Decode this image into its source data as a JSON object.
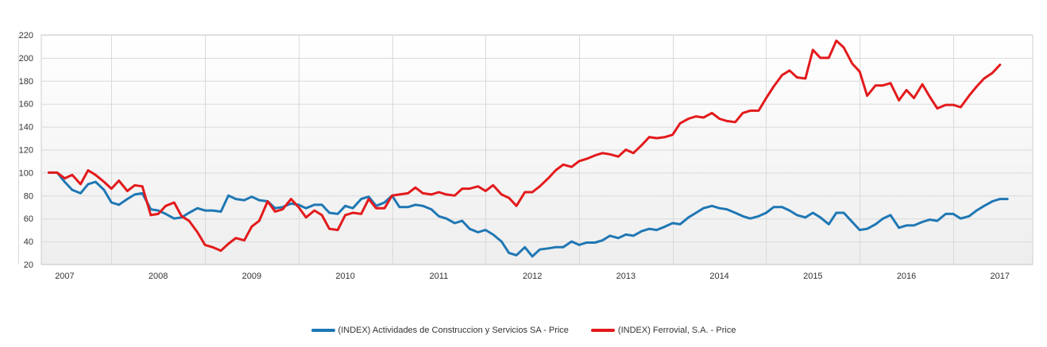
{
  "chart_data": {
    "type": "line",
    "x_years": [
      "2007",
      "2008",
      "2009",
      "2010",
      "2011",
      "2012",
      "2013",
      "2014",
      "2015",
      "2016",
      "2017"
    ],
    "x_range": [
      2006.75,
      2017.35
    ],
    "ylim": [
      20,
      220
    ],
    "yticks": [
      20,
      40,
      60,
      80,
      100,
      120,
      140,
      160,
      180,
      200,
      220
    ],
    "grid": true,
    "legend_placement": "bottom-center",
    "series": [
      {
        "name": "(INDEX) Actividades de Construccion y Servicios SA - Price",
        "color": "#1f77b4",
        "points": [
          [
            2006.83,
            100
          ],
          [
            2006.92,
            100
          ],
          [
            2007.0,
            92
          ],
          [
            2007.08,
            85
          ],
          [
            2007.17,
            82
          ],
          [
            2007.25,
            90
          ],
          [
            2007.33,
            92
          ],
          [
            2007.42,
            85
          ],
          [
            2007.5,
            74
          ],
          [
            2007.58,
            72
          ],
          [
            2007.67,
            77
          ],
          [
            2007.75,
            81
          ],
          [
            2007.83,
            82
          ],
          [
            2007.92,
            68
          ],
          [
            2008.0,
            67
          ],
          [
            2008.08,
            64
          ],
          [
            2008.17,
            60
          ],
          [
            2008.25,
            61
          ],
          [
            2008.33,
            65
          ],
          [
            2008.42,
            69
          ],
          [
            2008.5,
            67
          ],
          [
            2008.58,
            67
          ],
          [
            2008.67,
            66
          ],
          [
            2008.75,
            80
          ],
          [
            2008.83,
            77
          ],
          [
            2008.92,
            76
          ],
          [
            2009.0,
            79
          ],
          [
            2009.08,
            76
          ],
          [
            2009.17,
            75
          ],
          [
            2009.25,
            69
          ],
          [
            2009.33,
            70
          ],
          [
            2009.42,
            73
          ],
          [
            2009.5,
            72
          ],
          [
            2009.58,
            69
          ],
          [
            2009.67,
            72
          ],
          [
            2009.75,
            72
          ],
          [
            2009.83,
            65
          ],
          [
            2009.92,
            64
          ],
          [
            2010.0,
            71
          ],
          [
            2010.08,
            69
          ],
          [
            2010.17,
            77
          ],
          [
            2010.25,
            79
          ],
          [
            2010.33,
            71
          ],
          [
            2010.42,
            74
          ],
          [
            2010.5,
            80
          ],
          [
            2010.58,
            70
          ],
          [
            2010.67,
            70
          ],
          [
            2010.75,
            72
          ],
          [
            2010.83,
            71
          ],
          [
            2010.92,
            68
          ],
          [
            2011.0,
            62
          ],
          [
            2011.08,
            60
          ],
          [
            2011.17,
            56
          ],
          [
            2011.25,
            58
          ],
          [
            2011.33,
            51
          ],
          [
            2011.42,
            48
          ],
          [
            2011.5,
            50
          ],
          [
            2011.58,
            46
          ],
          [
            2011.67,
            40
          ],
          [
            2011.75,
            30
          ],
          [
            2011.83,
            28
          ],
          [
            2011.92,
            35
          ],
          [
            2012.0,
            27
          ],
          [
            2012.08,
            33
          ],
          [
            2012.17,
            34
          ],
          [
            2012.25,
            35
          ],
          [
            2012.33,
            35
          ],
          [
            2012.42,
            40
          ],
          [
            2012.5,
            37
          ],
          [
            2012.58,
            39
          ],
          [
            2012.67,
            39
          ],
          [
            2012.75,
            41
          ],
          [
            2012.83,
            45
          ],
          [
            2012.92,
            43
          ],
          [
            2013.0,
            46
          ],
          [
            2013.08,
            45
          ],
          [
            2013.17,
            49
          ],
          [
            2013.25,
            51
          ],
          [
            2013.33,
            50
          ],
          [
            2013.42,
            53
          ],
          [
            2013.5,
            56
          ],
          [
            2013.58,
            55
          ],
          [
            2013.67,
            61
          ],
          [
            2013.75,
            65
          ],
          [
            2013.83,
            69
          ],
          [
            2013.92,
            71
          ],
          [
            2014.0,
            69
          ],
          [
            2014.08,
            68
          ],
          [
            2014.17,
            65
          ],
          [
            2014.25,
            62
          ],
          [
            2014.33,
            60
          ],
          [
            2014.42,
            62
          ],
          [
            2014.5,
            65
          ],
          [
            2014.58,
            70
          ],
          [
            2014.67,
            70
          ],
          [
            2014.75,
            67
          ],
          [
            2014.83,
            63
          ],
          [
            2014.92,
            61
          ],
          [
            2015.0,
            65
          ],
          [
            2015.08,
            61
          ],
          [
            2015.17,
            55
          ],
          [
            2015.25,
            65
          ],
          [
            2015.33,
            65
          ],
          [
            2015.42,
            57
          ],
          [
            2015.5,
            50
          ],
          [
            2015.58,
            51
          ],
          [
            2015.67,
            55
          ],
          [
            2015.75,
            60
          ],
          [
            2015.83,
            63
          ],
          [
            2015.92,
            52
          ],
          [
            2016.0,
            54
          ],
          [
            2016.08,
            54
          ],
          [
            2016.17,
            57
          ],
          [
            2016.25,
            59
          ],
          [
            2016.33,
            58
          ],
          [
            2016.42,
            64
          ],
          [
            2016.5,
            64
          ],
          [
            2016.58,
            60
          ],
          [
            2016.67,
            62
          ],
          [
            2016.75,
            67
          ],
          [
            2016.83,
            71
          ],
          [
            2016.92,
            75
          ],
          [
            2017.0,
            77
          ],
          [
            2017.08,
            77
          ]
        ]
      },
      {
        "name": "(INDEX) Ferrovial, S.A. - Price",
        "color": "#e31a1c",
        "points": [
          [
            2006.83,
            100
          ],
          [
            2006.92,
            100
          ],
          [
            2007.0,
            95
          ],
          [
            2007.08,
            98
          ],
          [
            2007.17,
            90
          ],
          [
            2007.25,
            102
          ],
          [
            2007.33,
            98
          ],
          [
            2007.42,
            92
          ],
          [
            2007.5,
            86
          ],
          [
            2007.58,
            93
          ],
          [
            2007.67,
            84
          ],
          [
            2007.75,
            89
          ],
          [
            2007.83,
            88
          ],
          [
            2007.92,
            63
          ],
          [
            2008.0,
            64
          ],
          [
            2008.08,
            71
          ],
          [
            2008.17,
            74
          ],
          [
            2008.25,
            62
          ],
          [
            2008.33,
            58
          ],
          [
            2008.42,
            48
          ],
          [
            2008.5,
            37
          ],
          [
            2008.58,
            35
          ],
          [
            2008.67,
            32
          ],
          [
            2008.75,
            38
          ],
          [
            2008.83,
            43
          ],
          [
            2008.92,
            41
          ],
          [
            2009.0,
            53
          ],
          [
            2009.08,
            58
          ],
          [
            2009.17,
            75
          ],
          [
            2009.25,
            66
          ],
          [
            2009.33,
            68
          ],
          [
            2009.42,
            77
          ],
          [
            2009.5,
            70
          ],
          [
            2009.58,
            61
          ],
          [
            2009.67,
            67
          ],
          [
            2009.75,
            63
          ],
          [
            2009.83,
            51
          ],
          [
            2009.92,
            50
          ],
          [
            2010.0,
            63
          ],
          [
            2010.08,
            65
          ],
          [
            2010.17,
            64
          ],
          [
            2010.25,
            77
          ],
          [
            2010.33,
            69
          ],
          [
            2010.42,
            69
          ],
          [
            2010.5,
            80
          ],
          [
            2010.58,
            81
          ],
          [
            2010.67,
            82
          ],
          [
            2010.75,
            87
          ],
          [
            2010.83,
            82
          ],
          [
            2010.92,
            81
          ],
          [
            2011.0,
            83
          ],
          [
            2011.08,
            81
          ],
          [
            2011.17,
            80
          ],
          [
            2011.25,
            86
          ],
          [
            2011.33,
            86
          ],
          [
            2011.42,
            88
          ],
          [
            2011.5,
            84
          ],
          [
            2011.58,
            89
          ],
          [
            2011.67,
            81
          ],
          [
            2011.75,
            78
          ],
          [
            2011.83,
            71
          ],
          [
            2011.92,
            83
          ],
          [
            2012.0,
            83
          ],
          [
            2012.08,
            88
          ],
          [
            2012.17,
            95
          ],
          [
            2012.25,
            102
          ],
          [
            2012.33,
            107
          ],
          [
            2012.42,
            105
          ],
          [
            2012.5,
            110
          ],
          [
            2012.58,
            112
          ],
          [
            2012.67,
            115
          ],
          [
            2012.75,
            117
          ],
          [
            2012.83,
            116
          ],
          [
            2012.92,
            114
          ],
          [
            2013.0,
            120
          ],
          [
            2013.08,
            117
          ],
          [
            2013.17,
            124
          ],
          [
            2013.25,
            131
          ],
          [
            2013.33,
            130
          ],
          [
            2013.42,
            131
          ],
          [
            2013.5,
            133
          ],
          [
            2013.58,
            143
          ],
          [
            2013.67,
            147
          ],
          [
            2013.75,
            149
          ],
          [
            2013.83,
            148
          ],
          [
            2013.92,
            152
          ],
          [
            2014.0,
            147
          ],
          [
            2014.08,
            145
          ],
          [
            2014.17,
            144
          ],
          [
            2014.25,
            152
          ],
          [
            2014.33,
            154
          ],
          [
            2014.42,
            154
          ],
          [
            2014.5,
            165
          ],
          [
            2014.58,
            175
          ],
          [
            2014.67,
            185
          ],
          [
            2014.75,
            189
          ],
          [
            2014.83,
            183
          ],
          [
            2014.92,
            182
          ],
          [
            2015.0,
            207
          ],
          [
            2015.08,
            200
          ],
          [
            2015.17,
            200
          ],
          [
            2015.25,
            215
          ],
          [
            2015.33,
            209
          ],
          [
            2015.42,
            195
          ],
          [
            2015.5,
            188
          ],
          [
            2015.58,
            167
          ],
          [
            2015.67,
            176
          ],
          [
            2015.75,
            176
          ],
          [
            2015.83,
            178
          ],
          [
            2015.92,
            163
          ],
          [
            2016.0,
            172
          ],
          [
            2016.08,
            165
          ],
          [
            2016.17,
            177
          ],
          [
            2016.25,
            166
          ],
          [
            2016.33,
            156
          ],
          [
            2016.42,
            159
          ],
          [
            2016.5,
            159
          ],
          [
            2016.58,
            157
          ],
          [
            2016.67,
            167
          ],
          [
            2016.75,
            175
          ],
          [
            2016.83,
            182
          ],
          [
            2016.92,
            187
          ],
          [
            2017.0,
            194
          ]
        ]
      }
    ]
  }
}
